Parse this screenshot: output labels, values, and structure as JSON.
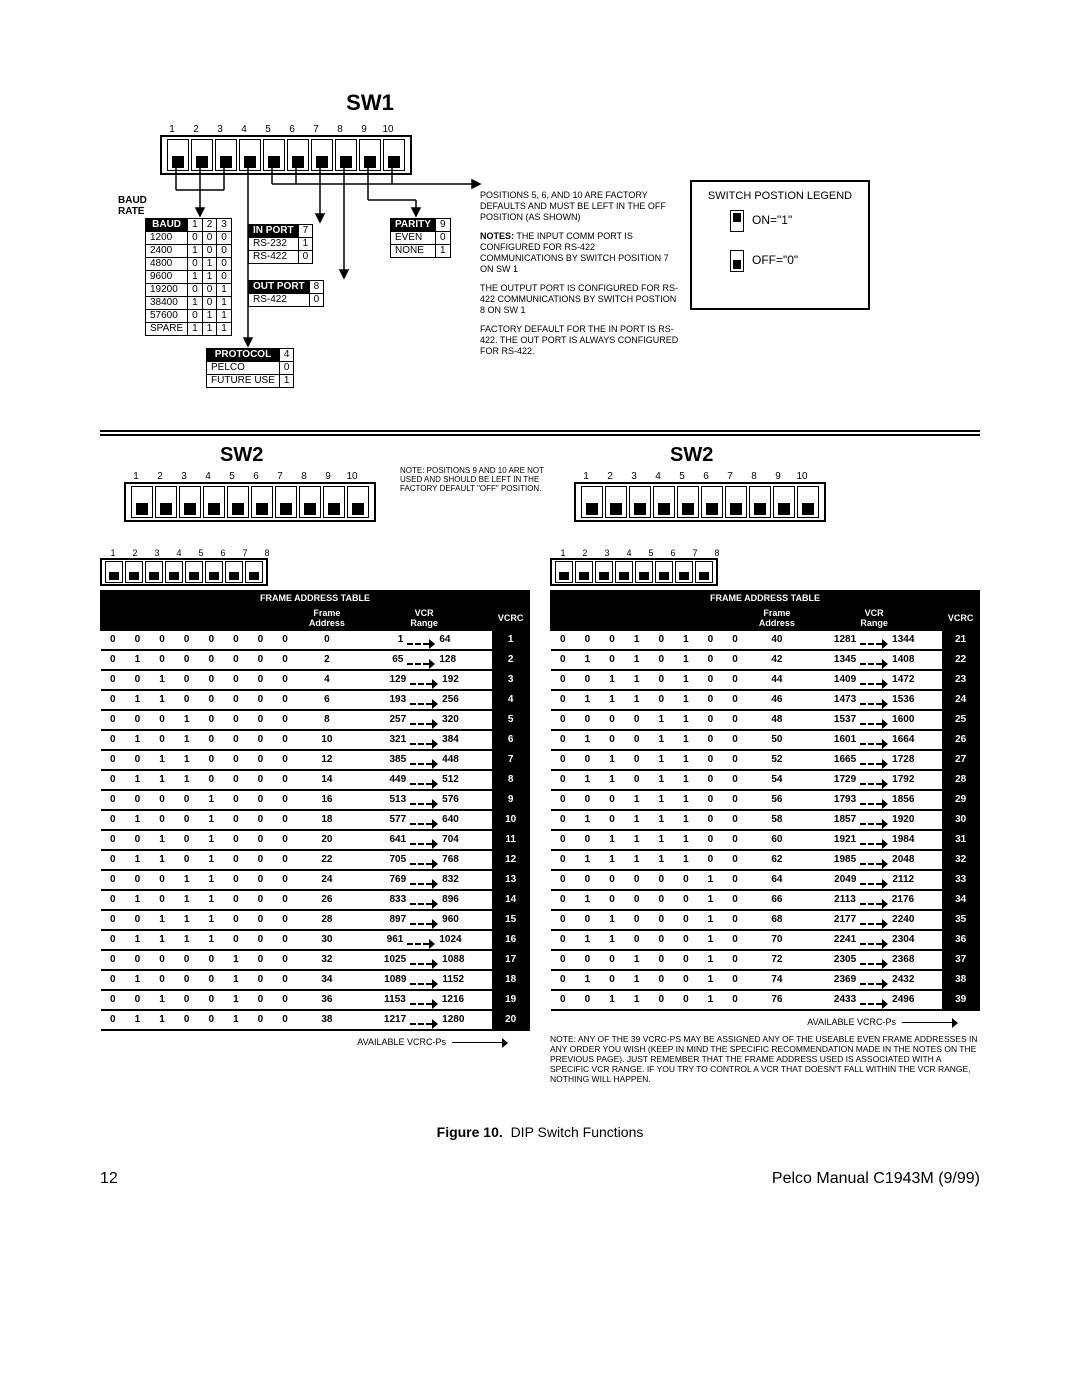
{
  "sw1": {
    "title": "SW1",
    "dip_count": 10,
    "dip_numbers": [
      "1",
      "2",
      "3",
      "4",
      "5",
      "6",
      "7",
      "8",
      "9",
      "10"
    ],
    "dip_states_off": true,
    "baud_label": "BAUD\nRATE",
    "baud_header": "BAUD",
    "baud_cols": [
      "1",
      "2",
      "3"
    ],
    "baud_rows": [
      [
        "1200",
        "0",
        "0",
        "0"
      ],
      [
        "2400",
        "1",
        "0",
        "0"
      ],
      [
        "4800",
        "0",
        "1",
        "0"
      ],
      [
        "9600",
        "1",
        "1",
        "0"
      ],
      [
        "19200",
        "0",
        "0",
        "1"
      ],
      [
        "38400",
        "1",
        "0",
        "1"
      ],
      [
        "57600",
        "0",
        "1",
        "1"
      ],
      [
        "SPARE",
        "1",
        "1",
        "1"
      ]
    ],
    "protocol_header": "PROTOCOL",
    "protocol_col": "4",
    "protocol_rows": [
      [
        "PELCO",
        "0"
      ],
      [
        "FUTURE USE",
        "1"
      ]
    ],
    "inport_header": "IN PORT",
    "inport_col": "7",
    "inport_rows": [
      [
        "RS-232",
        "1"
      ],
      [
        "RS-422",
        "0"
      ]
    ],
    "outport_header": "OUT PORT",
    "outport_col": "8",
    "outport_rows": [
      [
        "RS-422",
        "0"
      ]
    ],
    "parity_header": "PARITY",
    "parity_col": "9",
    "parity_rows": [
      [
        "EVEN",
        "0"
      ],
      [
        "NONE",
        "1"
      ]
    ],
    "note1": "POSITIONS 5, 6, AND 10 ARE FACTORY DEFAULTS AND MUST BE LEFT IN THE OFF POSITION (AS SHOWN)",
    "note2_label": "NOTES:",
    "note2": "THE INPUT COMM PORT IS CONFIGURED FOR RS-422 COMMUNICATIONS BY SWITCH POSITION 7 ON SW 1",
    "note3": "THE OUTPUT PORT IS CONFIGURED FOR RS-422 COMMUNICATIONS BY SWITCH POSTION 8 ON SW 1",
    "note4": "FACTORY DEFAULT FOR THE IN PORT IS RS-422. THE OUT PORT IS ALWAYS CONFIGURED FOR RS-422.",
    "legend_title": "SWITCH POSTION LEGEND",
    "legend_on": "ON=\"1\"",
    "legend_off": "OFF=\"0\""
  },
  "sw2": {
    "title": "SW2",
    "dip_numbers": [
      "1",
      "2",
      "3",
      "4",
      "5",
      "6",
      "7",
      "8",
      "9",
      "10"
    ],
    "dip8_numbers": [
      "1",
      "2",
      "3",
      "4",
      "5",
      "6",
      "7",
      "8"
    ],
    "note910": "NOTE: POSITIONS 9 AND 10 ARE NOT USED AND SHOULD BE LEFT IN THE FACTORY DEFAULT \"OFF\" POSITION.",
    "table_header": "FRAME ADDRESS TABLE",
    "col_frame": "Frame Address",
    "col_range": "VCR Range",
    "col_vcrc": "VCRC",
    "available": "AVAILABLE VCRC-Ps",
    "left_rows": [
      {
        "b": [
          "0",
          "0",
          "0",
          "0",
          "0",
          "0",
          "0",
          "0"
        ],
        "fa": "0",
        "r1": "1",
        "r2": "64",
        "v": "1"
      },
      {
        "b": [
          "0",
          "1",
          "0",
          "0",
          "0",
          "0",
          "0",
          "0"
        ],
        "fa": "2",
        "r1": "65",
        "r2": "128",
        "v": "2"
      },
      {
        "b": [
          "0",
          "0",
          "1",
          "0",
          "0",
          "0",
          "0",
          "0"
        ],
        "fa": "4",
        "r1": "129",
        "r2": "192",
        "v": "3"
      },
      {
        "b": [
          "0",
          "1",
          "1",
          "0",
          "0",
          "0",
          "0",
          "0"
        ],
        "fa": "6",
        "r1": "193",
        "r2": "256",
        "v": "4"
      },
      {
        "b": [
          "0",
          "0",
          "0",
          "1",
          "0",
          "0",
          "0",
          "0"
        ],
        "fa": "8",
        "r1": "257",
        "r2": "320",
        "v": "5"
      },
      {
        "b": [
          "0",
          "1",
          "0",
          "1",
          "0",
          "0",
          "0",
          "0"
        ],
        "fa": "10",
        "r1": "321",
        "r2": "384",
        "v": "6"
      },
      {
        "b": [
          "0",
          "0",
          "1",
          "1",
          "0",
          "0",
          "0",
          "0"
        ],
        "fa": "12",
        "r1": "385",
        "r2": "448",
        "v": "7"
      },
      {
        "b": [
          "0",
          "1",
          "1",
          "1",
          "0",
          "0",
          "0",
          "0"
        ],
        "fa": "14",
        "r1": "449",
        "r2": "512",
        "v": "8"
      },
      {
        "b": [
          "0",
          "0",
          "0",
          "0",
          "1",
          "0",
          "0",
          "0"
        ],
        "fa": "16",
        "r1": "513",
        "r2": "576",
        "v": "9"
      },
      {
        "b": [
          "0",
          "1",
          "0",
          "0",
          "1",
          "0",
          "0",
          "0"
        ],
        "fa": "18",
        "r1": "577",
        "r2": "640",
        "v": "10"
      },
      {
        "b": [
          "0",
          "0",
          "1",
          "0",
          "1",
          "0",
          "0",
          "0"
        ],
        "fa": "20",
        "r1": "641",
        "r2": "704",
        "v": "11"
      },
      {
        "b": [
          "0",
          "1",
          "1",
          "0",
          "1",
          "0",
          "0",
          "0"
        ],
        "fa": "22",
        "r1": "705",
        "r2": "768",
        "v": "12"
      },
      {
        "b": [
          "0",
          "0",
          "0",
          "1",
          "1",
          "0",
          "0",
          "0"
        ],
        "fa": "24",
        "r1": "769",
        "r2": "832",
        "v": "13"
      },
      {
        "b": [
          "0",
          "1",
          "0",
          "1",
          "1",
          "0",
          "0",
          "0"
        ],
        "fa": "26",
        "r1": "833",
        "r2": "896",
        "v": "14"
      },
      {
        "b": [
          "0",
          "0",
          "1",
          "1",
          "1",
          "0",
          "0",
          "0"
        ],
        "fa": "28",
        "r1": "897",
        "r2": "960",
        "v": "15"
      },
      {
        "b": [
          "0",
          "1",
          "1",
          "1",
          "1",
          "0",
          "0",
          "0"
        ],
        "fa": "30",
        "r1": "961",
        "r2": "1024",
        "v": "16"
      },
      {
        "b": [
          "0",
          "0",
          "0",
          "0",
          "0",
          "1",
          "0",
          "0"
        ],
        "fa": "32",
        "r1": "1025",
        "r2": "1088",
        "v": "17"
      },
      {
        "b": [
          "0",
          "1",
          "0",
          "0",
          "0",
          "1",
          "0",
          "0"
        ],
        "fa": "34",
        "r1": "1089",
        "r2": "1152",
        "v": "18"
      },
      {
        "b": [
          "0",
          "0",
          "1",
          "0",
          "0",
          "1",
          "0",
          "0"
        ],
        "fa": "36",
        "r1": "1153",
        "r2": "1216",
        "v": "19"
      },
      {
        "b": [
          "0",
          "1",
          "1",
          "0",
          "0",
          "1",
          "0",
          "0"
        ],
        "fa": "38",
        "r1": "1217",
        "r2": "1280",
        "v": "20"
      }
    ],
    "right_rows": [
      {
        "b": [
          "0",
          "0",
          "0",
          "1",
          "0",
          "1",
          "0",
          "0"
        ],
        "fa": "40",
        "r1": "1281",
        "r2": "1344",
        "v": "21"
      },
      {
        "b": [
          "0",
          "1",
          "0",
          "1",
          "0",
          "1",
          "0",
          "0"
        ],
        "fa": "42",
        "r1": "1345",
        "r2": "1408",
        "v": "22"
      },
      {
        "b": [
          "0",
          "0",
          "1",
          "1",
          "0",
          "1",
          "0",
          "0"
        ],
        "fa": "44",
        "r1": "1409",
        "r2": "1472",
        "v": "23"
      },
      {
        "b": [
          "0",
          "1",
          "1",
          "1",
          "0",
          "1",
          "0",
          "0"
        ],
        "fa": "46",
        "r1": "1473",
        "r2": "1536",
        "v": "24"
      },
      {
        "b": [
          "0",
          "0",
          "0",
          "0",
          "1",
          "1",
          "0",
          "0"
        ],
        "fa": "48",
        "r1": "1537",
        "r2": "1600",
        "v": "25"
      },
      {
        "b": [
          "0",
          "1",
          "0",
          "0",
          "1",
          "1",
          "0",
          "0"
        ],
        "fa": "50",
        "r1": "1601",
        "r2": "1664",
        "v": "26"
      },
      {
        "b": [
          "0",
          "0",
          "1",
          "0",
          "1",
          "1",
          "0",
          "0"
        ],
        "fa": "52",
        "r1": "1665",
        "r2": "1728",
        "v": "27"
      },
      {
        "b": [
          "0",
          "1",
          "1",
          "0",
          "1",
          "1",
          "0",
          "0"
        ],
        "fa": "54",
        "r1": "1729",
        "r2": "1792",
        "v": "28"
      },
      {
        "b": [
          "0",
          "0",
          "0",
          "1",
          "1",
          "1",
          "0",
          "0"
        ],
        "fa": "56",
        "r1": "1793",
        "r2": "1856",
        "v": "29"
      },
      {
        "b": [
          "0",
          "1",
          "0",
          "1",
          "1",
          "1",
          "0",
          "0"
        ],
        "fa": "58",
        "r1": "1857",
        "r2": "1920",
        "v": "30"
      },
      {
        "b": [
          "0",
          "0",
          "1",
          "1",
          "1",
          "1",
          "0",
          "0"
        ],
        "fa": "60",
        "r1": "1921",
        "r2": "1984",
        "v": "31"
      },
      {
        "b": [
          "0",
          "1",
          "1",
          "1",
          "1",
          "1",
          "0",
          "0"
        ],
        "fa": "62",
        "r1": "1985",
        "r2": "2048",
        "v": "32"
      },
      {
        "b": [
          "0",
          "0",
          "0",
          "0",
          "0",
          "0",
          "1",
          "0"
        ],
        "fa": "64",
        "r1": "2049",
        "r2": "2112",
        "v": "33"
      },
      {
        "b": [
          "0",
          "1",
          "0",
          "0",
          "0",
          "0",
          "1",
          "0"
        ],
        "fa": "66",
        "r1": "2113",
        "r2": "2176",
        "v": "34"
      },
      {
        "b": [
          "0",
          "0",
          "1",
          "0",
          "0",
          "0",
          "1",
          "0"
        ],
        "fa": "68",
        "r1": "2177",
        "r2": "2240",
        "v": "35"
      },
      {
        "b": [
          "0",
          "1",
          "1",
          "0",
          "0",
          "0",
          "1",
          "0"
        ],
        "fa": "70",
        "r1": "2241",
        "r2": "2304",
        "v": "36"
      },
      {
        "b": [
          "0",
          "0",
          "0",
          "1",
          "0",
          "0",
          "1",
          "0"
        ],
        "fa": "72",
        "r1": "2305",
        "r2": "2368",
        "v": "37"
      },
      {
        "b": [
          "0",
          "1",
          "0",
          "1",
          "0",
          "0",
          "1",
          "0"
        ],
        "fa": "74",
        "r1": "2369",
        "r2": "2432",
        "v": "38"
      },
      {
        "b": [
          "0",
          "0",
          "1",
          "1",
          "0",
          "0",
          "1",
          "0"
        ],
        "fa": "76",
        "r1": "2433",
        "r2": "2496",
        "v": "39"
      }
    ],
    "bottom_note": "NOTE: ANY OF THE 39 VCRC-PS MAY BE ASSIGNED ANY OF THE USEABLE EVEN FRAME ADDRESSES IN ANY ORDER YOU WISH (KEEP IN MIND THE SPECIFIC RECOMMENDATION MADE IN THE NOTES ON THE PREVIOUS PAGE). JUST REMEMBER THAT THE FRAME ADDRESS USED IS ASSOCIATED WITH A SPECIFIC VCR RANGE. IF YOU TRY TO CONTROL A VCR THAT DOESN'T FALL WITHIN THE VCR RANGE, NOTHING WILL HAPPEN."
  },
  "caption_label": "Figure 10.",
  "caption_text": "DIP Switch Functions",
  "footer_page": "12",
  "footer_manual": "Pelco Manual C1943M (9/99)"
}
